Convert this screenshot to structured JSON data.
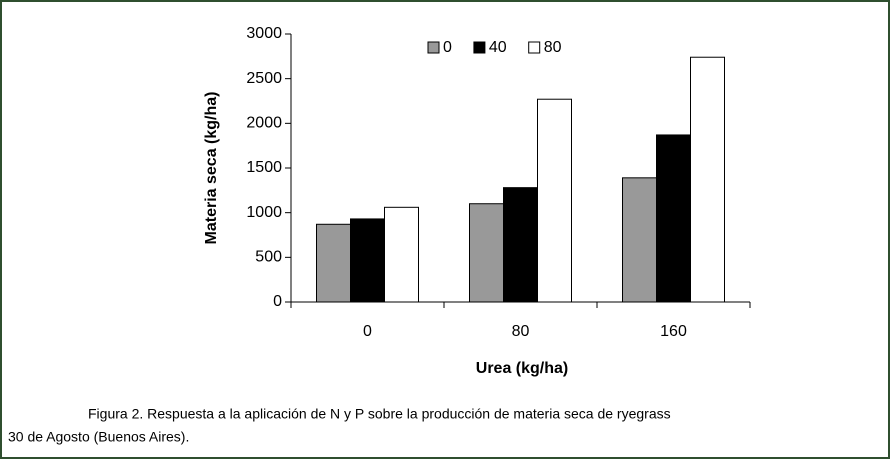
{
  "chart_data": {
    "type": "bar",
    "ylabel": "Materia seca (kg/ha)",
    "xlabel": "Urea (kg/ha)",
    "caption": [
      "Figura 2. Respuesta a la aplicación de N y P sobre la producción de materia seca de ryegrass",
      "30 de Agosto (Buenos Aires)."
    ],
    "categories": [
      "0",
      "80",
      "160"
    ],
    "series": [
      {
        "name": "0",
        "color": "#999999",
        "values": [
          870,
          1100,
          1390
        ]
      },
      {
        "name": "40",
        "color": "#000000",
        "values": [
          930,
          1280,
          1870
        ]
      },
      {
        "name": "80",
        "color": "#ffffff",
        "values": [
          1060,
          2270,
          2740
        ]
      }
    ],
    "ylim": [
      0,
      3000
    ],
    "yticks": [
      0,
      500,
      1000,
      1500,
      2000,
      2500,
      3000
    ],
    "legend": "top"
  }
}
